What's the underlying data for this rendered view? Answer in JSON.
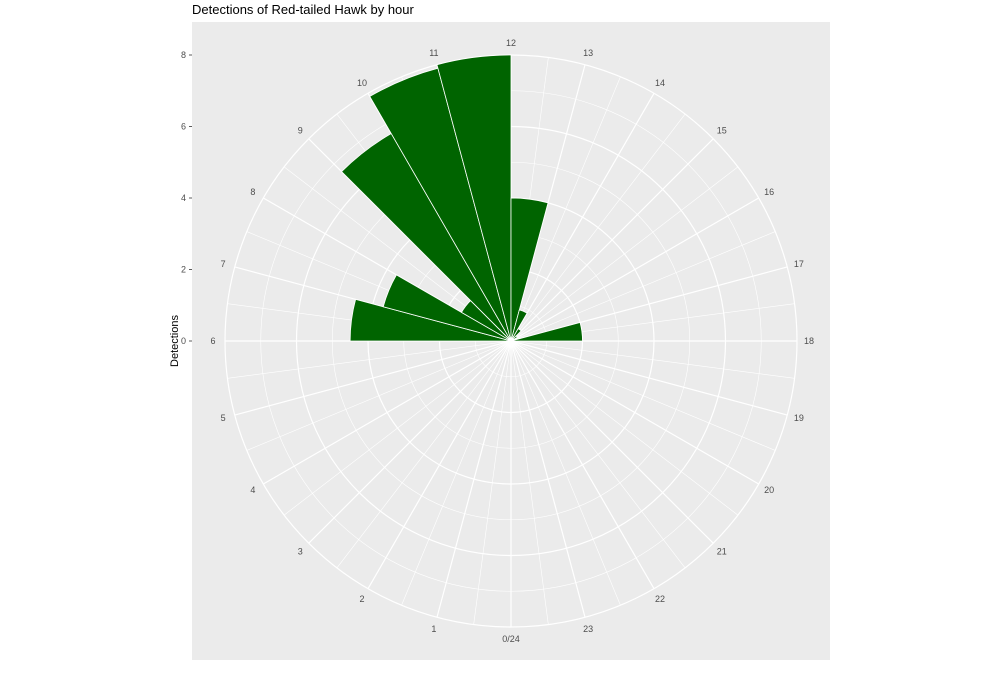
{
  "chart_data": {
    "type": "bar",
    "coord": "polar",
    "title": "Detections of Red-tailed Hawk by hour",
    "xlabel": "",
    "ylabel": "Detections",
    "ylim": [
      0,
      8
    ],
    "yticks": [
      "0",
      "2",
      "4",
      "6",
      "8"
    ],
    "categories": [
      "0/24",
      "1",
      "2",
      "3",
      "4",
      "5",
      "6",
      "7",
      "8",
      "9",
      "10",
      "11",
      "12",
      "13",
      "14",
      "15",
      "16",
      "17",
      "18",
      "19",
      "20",
      "21",
      "22",
      "23"
    ],
    "values": [
      0,
      0,
      0,
      0,
      0,
      0,
      0,
      4.5,
      3.7,
      1.6,
      6.7,
      7.9,
      8,
      4,
      0.9,
      0.4,
      0.2,
      0,
      2,
      0,
      0,
      0,
      0,
      0
    ],
    "grid": true,
    "fill_color": "#006400",
    "panel_color": "#ebebeb",
    "grid_color": "#ffffff"
  }
}
